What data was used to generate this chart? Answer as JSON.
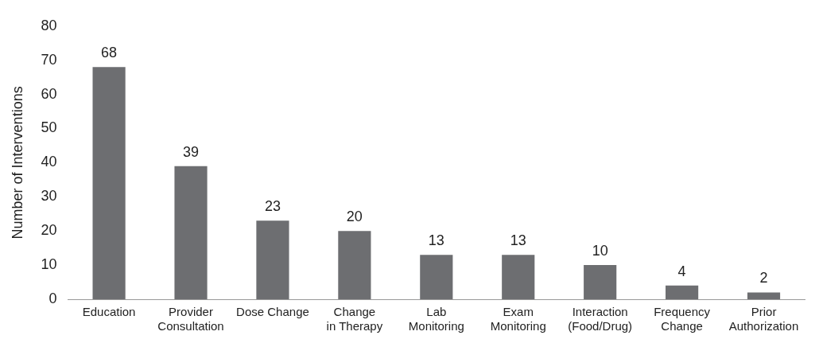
{
  "chart_data": {
    "type": "bar",
    "ylabel": "Number of Interventions",
    "categories": [
      "Education",
      "Provider\nConsultation",
      "Dose Change",
      "Change\nin Therapy",
      "Lab\nMonitoring",
      "Exam\nMonitoring",
      "Interaction\n(Food/Drug)",
      "Frequency\nChange",
      "Prior\nAuthorization"
    ],
    "values": [
      68,
      39,
      23,
      20,
      13,
      13,
      10,
      4,
      2
    ],
    "color": "#6d6e71",
    "ylim": [
      0,
      80
    ],
    "yticks": [
      0,
      10,
      20,
      30,
      40,
      50,
      60,
      70,
      80
    ],
    "grid": false,
    "data_labels": true,
    "legend": false
  }
}
